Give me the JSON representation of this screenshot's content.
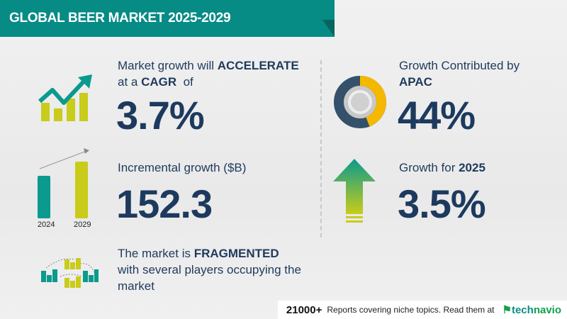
{
  "header": {
    "title": "GLOBAL BEER MARKET 2025-2029"
  },
  "cagr": {
    "line1_prefix": "Market growth will ",
    "line1_emph": "ACCELERATE",
    "line2_prefix": "at a ",
    "line2_emph": "CAGR",
    "line2_suffix": "  of",
    "value": "3.7%"
  },
  "incremental": {
    "label": "Incremental growth ($B)",
    "value": "152.3",
    "bar_years": [
      "2024",
      "2029"
    ]
  },
  "fragmented": {
    "line1_prefix": "The market is ",
    "line1_emph": "FRAGMENTED",
    "line2": "with several players occupying the",
    "line3": "market"
  },
  "region": {
    "label": "Growth Contributed by",
    "emph": "APAC",
    "value": "44%",
    "share_percent": 44
  },
  "growth_year": {
    "label_prefix": "Growth for ",
    "emph": "2025",
    "value": "3.5%"
  },
  "footer": {
    "count": "21000+",
    "text": "Reports covering niche topics. Read them at",
    "logo_a": "tech",
    "logo_b": "navio"
  },
  "colors": {
    "teal": "#068b85",
    "navy": "#1e3a5c",
    "yellow": "#c9cc1a",
    "donut_yellow": "#f5b800",
    "donut_dark": "#34506a"
  }
}
